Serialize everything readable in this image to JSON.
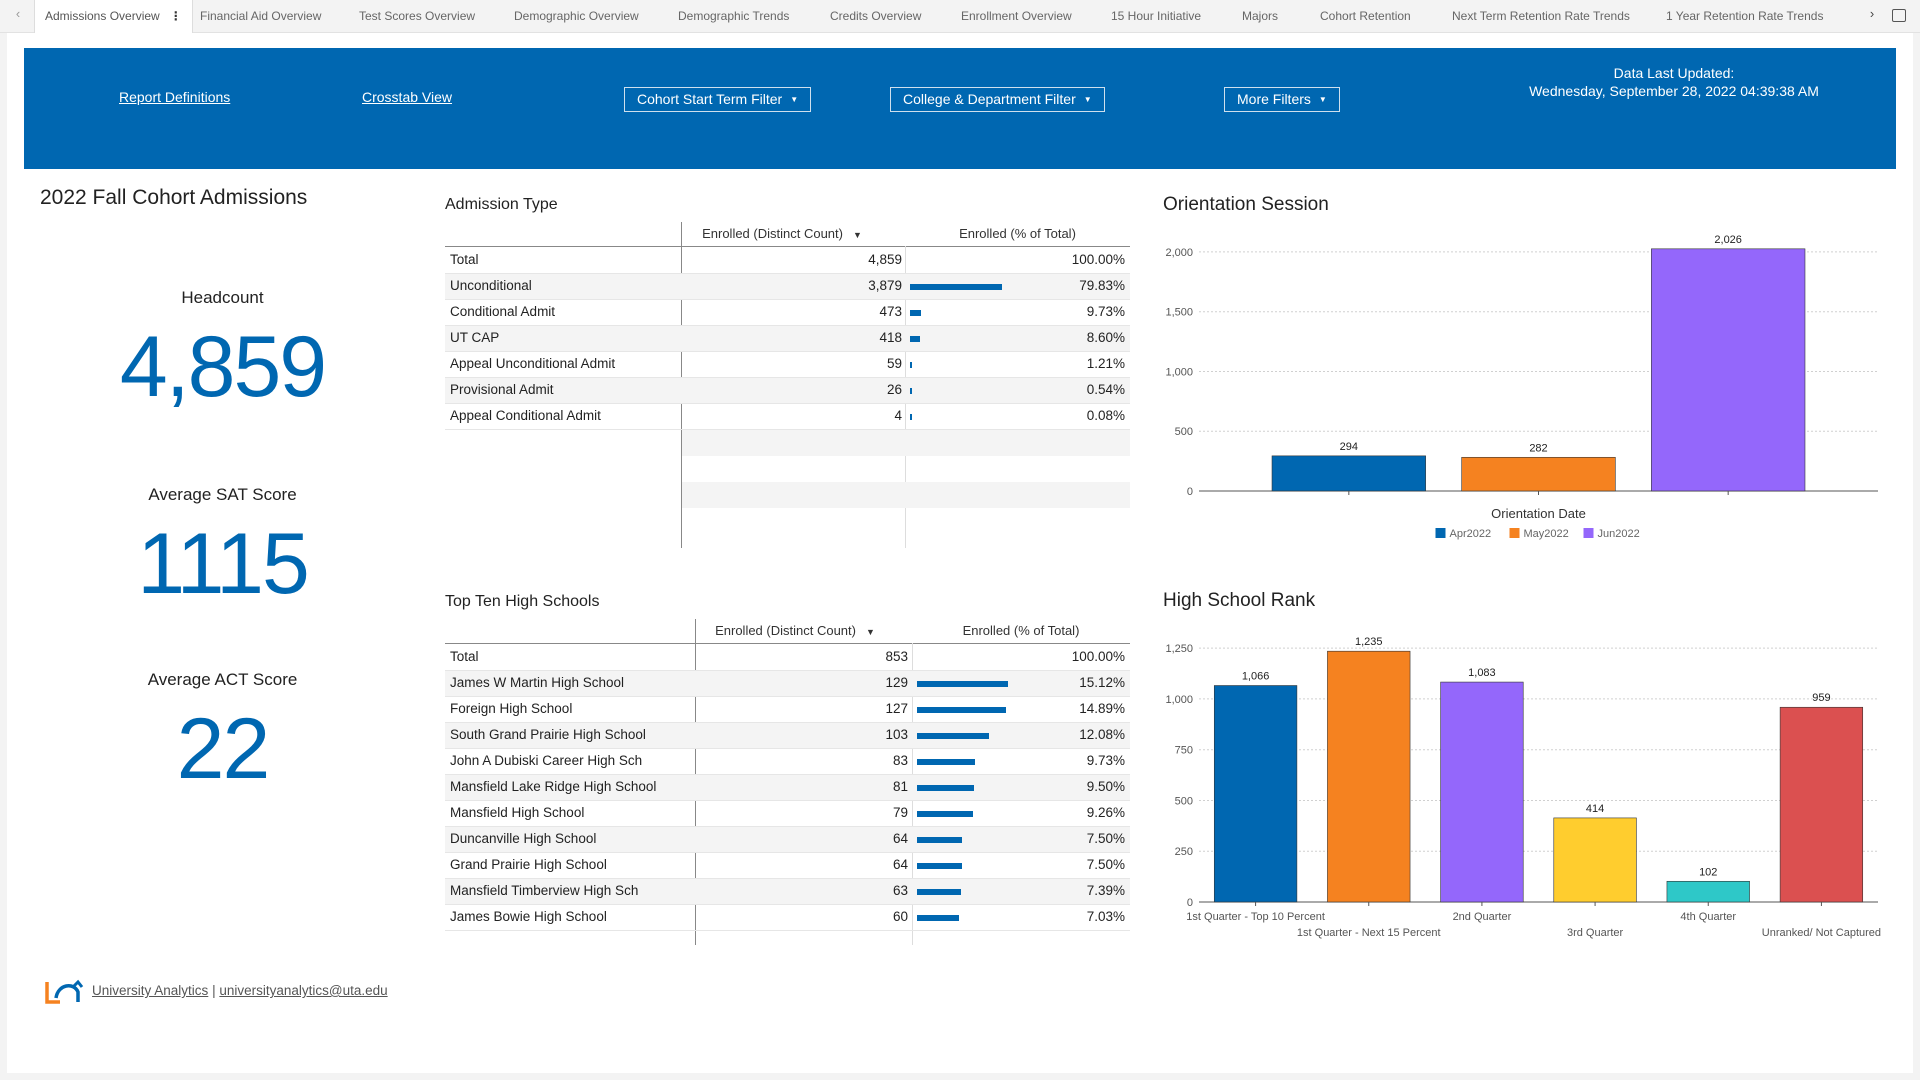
{
  "tabs": [
    {
      "label": "Admissions Overview",
      "active": true
    },
    {
      "label": "Financial Aid Overview"
    },
    {
      "label": "Test Scores Overview"
    },
    {
      "label": "Demographic Overview"
    },
    {
      "label": "Demographic Trends"
    },
    {
      "label": "Credits Overview"
    },
    {
      "label": "Enrollment Overview"
    },
    {
      "label": "15 Hour Initiative"
    },
    {
      "label": "Majors"
    },
    {
      "label": "Cohort Retention"
    },
    {
      "label": "Next Term Retention Rate Trends"
    },
    {
      "label": "1 Year Retention Rate Trends"
    }
  ],
  "tab_menu_glyph": "⋮",
  "banner": {
    "report_definitions": "Report Definitions",
    "crosstab_view": "Crosstab View",
    "cohort_filter": "Cohort Start Term Filter",
    "college_filter": "College & Department Filter",
    "more_filters": "More Filters",
    "updated_label": "Data Last Updated:",
    "updated_value": "Wednesday, September 28, 2022 04:39:38 AM"
  },
  "kpis": {
    "title": "2022 Fall Cohort Admissions",
    "headcount_label": "Headcount",
    "headcount_value": "4,859",
    "sat_label": "Average SAT Score",
    "sat_value": "1115",
    "act_label": "Average ACT Score",
    "act_value": "22"
  },
  "admission_type": {
    "title": "Admission Type",
    "col_count": "Enrolled (Distinct Count)",
    "col_pct": "Enrolled (% of Total)",
    "sort_glyph": "▼",
    "rows": [
      {
        "name": "Total",
        "count": "4,859",
        "pct": "100.00%",
        "share": 0
      },
      {
        "name": "Unconditional",
        "count": "3,879",
        "pct": "79.83%",
        "share": 79.83
      },
      {
        "name": "Conditional Admit",
        "count": "473",
        "pct": "9.73%",
        "share": 9.73
      },
      {
        "name": "UT CAP",
        "count": "418",
        "pct": "8.60%",
        "share": 8.6
      },
      {
        "name": "Appeal Unconditional Admit",
        "count": "59",
        "pct": "1.21%",
        "share": 1.21
      },
      {
        "name": "Provisional Admit",
        "count": "26",
        "pct": "0.54%",
        "share": 0.54
      },
      {
        "name": "Appeal Conditional Admit",
        "count": "4",
        "pct": "0.08%",
        "share": 0.08
      }
    ]
  },
  "high_schools": {
    "title": "Top Ten High Schools",
    "col_count": "Enrolled (Distinct Count)",
    "col_pct": "Enrolled (% of Total)",
    "sort_glyph": "▼",
    "rows": [
      {
        "name": "Total",
        "count": "853",
        "pct": "100.00%",
        "share": 0
      },
      {
        "name": "James W Martin High School",
        "count": "129",
        "pct": "15.12%",
        "share": 15.12
      },
      {
        "name": "Foreign High School",
        "count": "127",
        "pct": "14.89%",
        "share": 14.89
      },
      {
        "name": "South Grand Prairie High School",
        "count": "103",
        "pct": "12.08%",
        "share": 12.08
      },
      {
        "name": "John A Dubiski Career High Sch",
        "count": "83",
        "pct": "9.73%",
        "share": 9.73
      },
      {
        "name": "Mansfield Lake Ridge High School",
        "count": "81",
        "pct": "9.50%",
        "share": 9.5
      },
      {
        "name": "Mansfield High School",
        "count": "79",
        "pct": "9.26%",
        "share": 9.26
      },
      {
        "name": "Duncanville High School",
        "count": "64",
        "pct": "7.50%",
        "share": 7.5
      },
      {
        "name": "Grand Prairie High School",
        "count": "64",
        "pct": "7.50%",
        "share": 7.5
      },
      {
        "name": "Mansfield Timberview High Sch",
        "count": "63",
        "pct": "7.39%",
        "share": 7.39
      },
      {
        "name": "James Bowie High School",
        "count": "60",
        "pct": "7.03%",
        "share": 7.03
      }
    ]
  },
  "chart_data": [
    {
      "type": "bar",
      "title": "Orientation Session",
      "xlabel": "Orientation Date",
      "ylabel": "",
      "categories": [
        "Apr2022",
        "May2022",
        "Jun2022"
      ],
      "values": [
        294,
        282,
        2026
      ],
      "value_labels": [
        "294",
        "282",
        "2,026"
      ],
      "colors": [
        "#0067b1",
        "#f58220",
        "#9467fb"
      ],
      "ylim": [
        0,
        2150
      ],
      "yticks": [
        0,
        500,
        1000,
        1500,
        2000
      ],
      "ytick_labels": [
        "0",
        "500",
        "1,000",
        "1,500",
        "2,000"
      ],
      "grid": true,
      "legend": "bottom"
    },
    {
      "type": "bar",
      "title": "High School Rank",
      "xlabel": "",
      "ylabel": "",
      "categories": [
        "1st Quarter - Top 10 Percent",
        "1st Quarter - Next 15 Percent",
        "2nd Quarter",
        "3rd Quarter",
        "4th Quarter",
        "Unranked/ Not Captured"
      ],
      "values": [
        1066,
        1235,
        1083,
        414,
        102,
        959
      ],
      "value_labels": [
        "1,066",
        "1,235",
        "1,083",
        "414",
        "102",
        "959"
      ],
      "colors": [
        "#0067b1",
        "#f58220",
        "#9467fb",
        "#ffcd2e",
        "#2ec8c8",
        "#db5050"
      ],
      "ylim": [
        0,
        1300
      ],
      "yticks": [
        0,
        250,
        500,
        750,
        1000,
        1250
      ],
      "ytick_labels": [
        "0",
        "250",
        "500",
        "750",
        "1,000",
        "1,250"
      ],
      "grid": true,
      "legend": "none"
    }
  ],
  "footer": {
    "org": "University Analytics",
    "separator": "|",
    "email": "universityanalytics@uta.edu"
  },
  "icons": {
    "tab_left": "‹",
    "tab_right": "›",
    "caret": "▼"
  }
}
